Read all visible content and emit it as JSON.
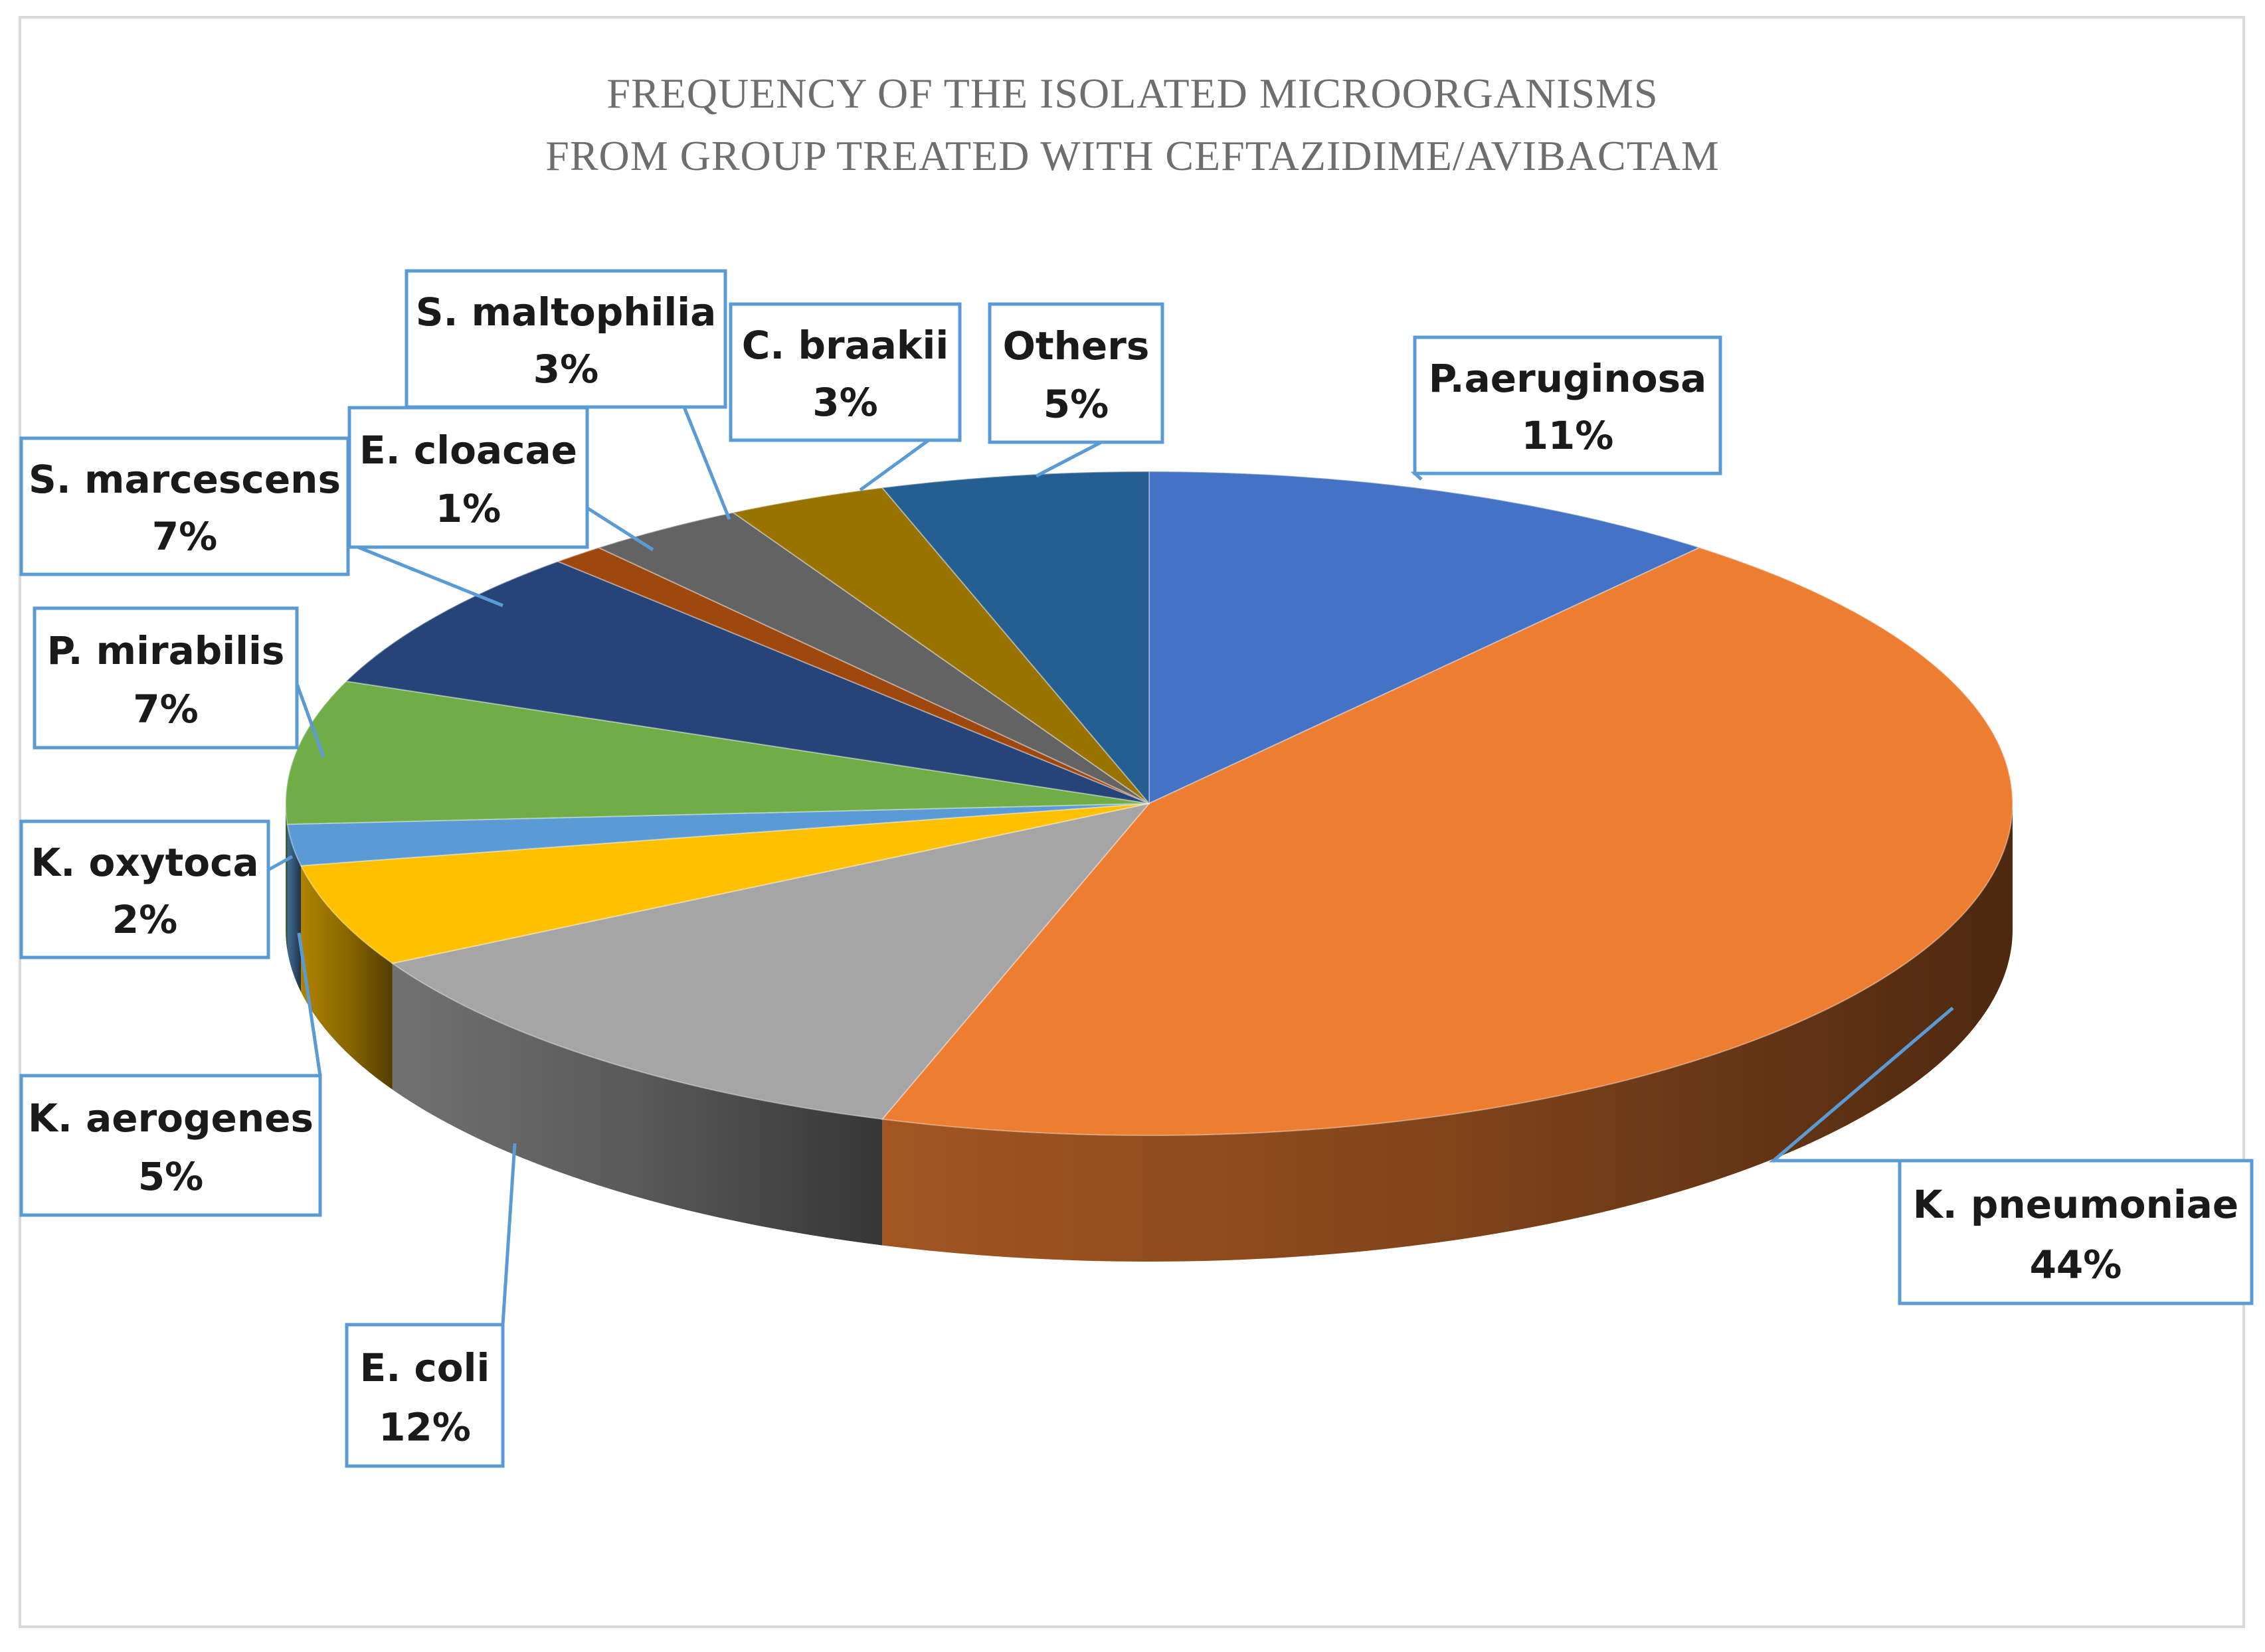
{
  "chart_data": {
    "type": "pie",
    "title_lines": [
      "FREQUENCY OF THE ISOLATED MICROORGANISMS",
      "FROM GROUP TREATED WITH CEFTAZIDIME/AVIBACTAM"
    ],
    "categories": [
      "P.aeruginosa",
      "K. pneumoniae",
      "E. coli",
      "K. aerogenes",
      "K. oxytoca",
      "P. mirabilis",
      "S. marcescens",
      "E. cloacae",
      "S. maltophilia",
      "C. braakii",
      "Others"
    ],
    "values": [
      11,
      44,
      12,
      5,
      2,
      7,
      7,
      1,
      3,
      3,
      5
    ],
    "value_labels": [
      "11%",
      "44%",
      "12%",
      "5%",
      "2%",
      "7%",
      "7%",
      "1%",
      "3%",
      "3%",
      "5%"
    ],
    "colors": [
      "#4472c4",
      "#ed7d31",
      "#a5a5a5",
      "#ffc000",
      "#5b9bd5",
      "#70ad47",
      "#264478",
      "#9e480e",
      "#636363",
      "#997300",
      "#255e91"
    ],
    "style": "3d-pie",
    "legend": "none",
    "data_labels": "callouts"
  }
}
